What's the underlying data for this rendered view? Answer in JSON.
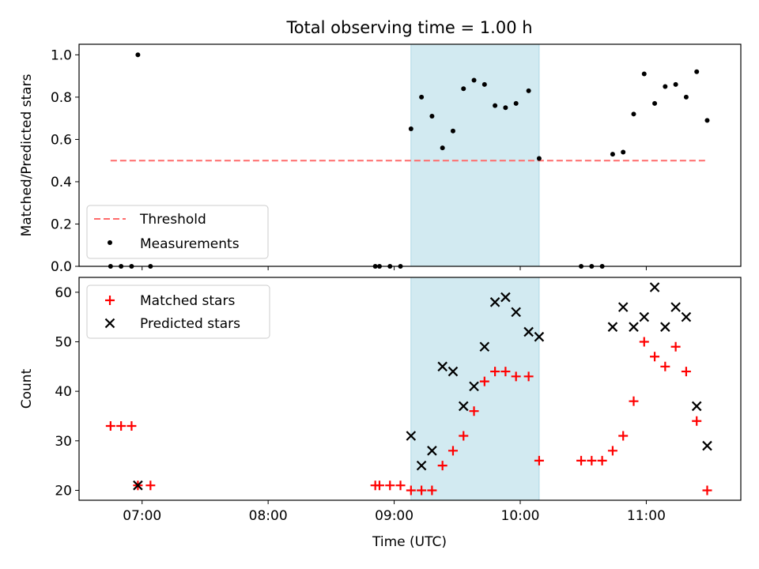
{
  "title": "Total observing time = 1.00 h",
  "xlabel": "Time (UTC)",
  "x_ticks": [
    "07:00",
    "08:00",
    "09:00",
    "10:00",
    "11:00"
  ],
  "highlight_span": [
    "09:08",
    "10:09"
  ],
  "colors": {
    "threshold": "#ff6b6b",
    "measurements": "#000000",
    "matched": "#ff0000",
    "predicted": "#000000",
    "span": "#add8e6"
  },
  "chart_data": [
    {
      "type": "scatter",
      "ylabel": "Matched/Predicted stars",
      "xlim": [
        "06:30",
        "11:45"
      ],
      "ylim": [
        0,
        1.05
      ],
      "y_ticks": [
        "0.0",
        "0.2",
        "0.4",
        "0.6",
        "0.8",
        "1.0"
      ],
      "threshold": 0.5,
      "threshold_x": [
        "06:45",
        "11:28"
      ],
      "legend": {
        "placement": "lower-left",
        "threshold_label": "Threshold",
        "measurements_label": "Measurements"
      },
      "series": [
        {
          "name": "Measurements",
          "x": [
            "06:45",
            "06:50",
            "06:55",
            "06:58",
            "07:04",
            "08:51",
            "08:53",
            "08:58",
            "09:03",
            "09:08",
            "09:13",
            "09:18",
            "09:23",
            "09:28",
            "09:33",
            "09:38",
            "09:43",
            "09:48",
            "09:53",
            "09:58",
            "10:04",
            "10:09",
            "10:29",
            "10:34",
            "10:39",
            "10:44",
            "10:49",
            "10:54",
            "10:59",
            "11:04",
            "11:09",
            "11:14",
            "11:19",
            "11:24",
            "11:29"
          ],
          "y": [
            0,
            0,
            0,
            1.0,
            0,
            0,
            0,
            0,
            0,
            0.65,
            0.8,
            0.71,
            0.56,
            0.64,
            0.84,
            0.88,
            0.86,
            0.76,
            0.75,
            0.77,
            0.83,
            0.51,
            0,
            0,
            0,
            0.53,
            0.54,
            0.72,
            0.91,
            0.77,
            0.85,
            0.86,
            0.8,
            0.92,
            0.69
          ]
        }
      ]
    },
    {
      "type": "scatter",
      "ylabel": "Count",
      "xlim": [
        "06:30",
        "11:45"
      ],
      "ylim": [
        18,
        63
      ],
      "y_ticks": [
        "20",
        "30",
        "40",
        "50",
        "60"
      ],
      "legend": {
        "placement": "top-left",
        "matched_label": "Matched stars",
        "predicted_label": "Predicted stars"
      },
      "series": [
        {
          "name": "Matched stars",
          "x": [
            "06:45",
            "06:50",
            "06:55",
            "06:58",
            "07:04",
            "08:51",
            "08:53",
            "08:58",
            "09:03",
            "09:08",
            "09:13",
            "09:18",
            "09:23",
            "09:28",
            "09:33",
            "09:38",
            "09:43",
            "09:48",
            "09:53",
            "09:58",
            "10:04",
            "10:09",
            "10:29",
            "10:34",
            "10:39",
            "10:44",
            "10:49",
            "10:54",
            "10:59",
            "11:04",
            "11:09",
            "11:14",
            "11:19",
            "11:24",
            "11:29"
          ],
          "y": [
            33,
            33,
            33,
            21,
            21,
            21,
            21,
            21,
            21,
            20,
            20,
            20,
            25,
            28,
            31,
            36,
            42,
            44,
            44,
            43,
            43,
            26,
            26,
            26,
            26,
            28,
            31,
            38,
            50,
            47,
            45,
            49,
            44,
            34,
            20
          ]
        },
        {
          "name": "Predicted stars",
          "x": [
            "06:58",
            "09:08",
            "09:13",
            "09:18",
            "09:23",
            "09:28",
            "09:33",
            "09:38",
            "09:43",
            "09:48",
            "09:53",
            "09:58",
            "10:04",
            "10:09",
            "10:44",
            "10:49",
            "10:54",
            "10:59",
            "11:04",
            "11:09",
            "11:14",
            "11:19",
            "11:24",
            "11:29"
          ],
          "y": [
            21,
            31,
            25,
            28,
            45,
            44,
            37,
            41,
            49,
            58,
            59,
            56,
            52,
            51,
            53,
            57,
            53,
            55,
            61,
            53,
            57,
            55,
            37,
            29
          ]
        }
      ]
    }
  ]
}
